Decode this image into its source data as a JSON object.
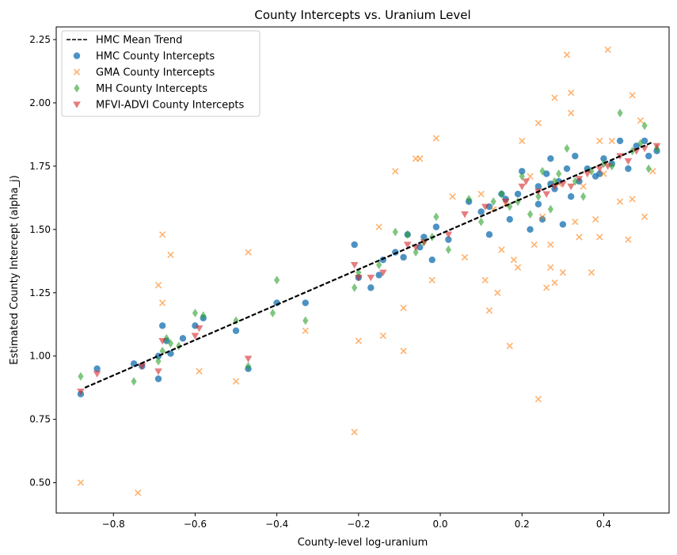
{
  "chart_data": {
    "type": "scatter",
    "title": "County Intercepts vs. Uranium Level",
    "xlabel": "County-level log-uranium",
    "ylabel": "Estimated County Intercept (alpha_j)",
    "xlim": [
      -0.94,
      0.56
    ],
    "ylim": [
      0.38,
      2.3
    ],
    "xticks": [
      -0.8,
      -0.6,
      -0.4,
      -0.2,
      0.0,
      0.2,
      0.4
    ],
    "xtick_labels": [
      "−0.8",
      "−0.6",
      "−0.4",
      "−0.2",
      "0.0",
      "0.2",
      "0.4"
    ],
    "yticks": [
      0.5,
      0.75,
      1.0,
      1.25,
      1.5,
      1.75,
      2.0,
      2.25
    ],
    "ytick_labels": [
      "0.50",
      "0.75",
      "1.00",
      "1.25",
      "1.50",
      "1.75",
      "2.00",
      "2.25"
    ],
    "grid": false,
    "legend_position": "top-left",
    "trend": {
      "name": "HMC Mean Trend",
      "x": [
        -0.87,
        0.52
      ],
      "y": [
        0.875,
        1.845
      ],
      "color": "#000000"
    },
    "series": [
      {
        "name": "HMC County Intercepts",
        "marker": "circle",
        "color": "#1f77b4",
        "points": [
          [
            -0.88,
            0.85
          ],
          [
            -0.84,
            0.95
          ],
          [
            -0.75,
            0.97
          ],
          [
            -0.73,
            0.96
          ],
          [
            -0.69,
            0.91
          ],
          [
            -0.69,
            1.0
          ],
          [
            -0.68,
            1.12
          ],
          [
            -0.67,
            1.06
          ],
          [
            -0.66,
            1.01
          ],
          [
            -0.63,
            1.07
          ],
          [
            -0.6,
            1.12
          ],
          [
            -0.58,
            1.15
          ],
          [
            -0.5,
            1.1
          ],
          [
            -0.47,
            0.95
          ],
          [
            -0.4,
            1.21
          ],
          [
            -0.33,
            1.21
          ],
          [
            -0.21,
            1.44
          ],
          [
            -0.2,
            1.31
          ],
          [
            -0.17,
            1.27
          ],
          [
            -0.15,
            1.32
          ],
          [
            -0.14,
            1.38
          ],
          [
            -0.11,
            1.41
          ],
          [
            -0.09,
            1.39
          ],
          [
            -0.08,
            1.48
          ],
          [
            -0.05,
            1.43
          ],
          [
            -0.04,
            1.47
          ],
          [
            -0.02,
            1.38
          ],
          [
            -0.01,
            1.51
          ],
          [
            0.02,
            1.46
          ],
          [
            0.07,
            1.61
          ],
          [
            0.1,
            1.57
          ],
          [
            0.12,
            1.59
          ],
          [
            0.12,
            1.48
          ],
          [
            0.15,
            1.64
          ],
          [
            0.16,
            1.62
          ],
          [
            0.17,
            1.54
          ],
          [
            0.19,
            1.64
          ],
          [
            0.2,
            1.73
          ],
          [
            0.22,
            1.5
          ],
          [
            0.24,
            1.6
          ],
          [
            0.24,
            1.67
          ],
          [
            0.25,
            1.54
          ],
          [
            0.26,
            1.72
          ],
          [
            0.27,
            1.68
          ],
          [
            0.27,
            1.78
          ],
          [
            0.28,
            1.66
          ],
          [
            0.29,
            1.69
          ],
          [
            0.3,
            1.52
          ],
          [
            0.31,
            1.74
          ],
          [
            0.32,
            1.63
          ],
          [
            0.33,
            1.79
          ],
          [
            0.34,
            1.69
          ],
          [
            0.36,
            1.74
          ],
          [
            0.38,
            1.71
          ],
          [
            0.39,
            1.72
          ],
          [
            0.4,
            1.78
          ],
          [
            0.42,
            1.76
          ],
          [
            0.44,
            1.85
          ],
          [
            0.46,
            1.74
          ],
          [
            0.48,
            1.83
          ],
          [
            0.5,
            1.85
          ],
          [
            0.51,
            1.79
          ],
          [
            0.53,
            1.81
          ]
        ]
      },
      {
        "name": "GMA County Intercepts",
        "marker": "x",
        "color": "#ff7f0e",
        "points": [
          [
            -0.88,
            0.5
          ],
          [
            -0.74,
            0.46
          ],
          [
            -0.69,
            1.28
          ],
          [
            -0.68,
            1.48
          ],
          [
            -0.68,
            1.21
          ],
          [
            -0.66,
            1.4
          ],
          [
            -0.59,
            0.94
          ],
          [
            -0.5,
            0.9
          ],
          [
            -0.47,
            1.41
          ],
          [
            -0.33,
            1.1
          ],
          [
            -0.21,
            0.7
          ],
          [
            -0.2,
            1.06
          ],
          [
            -0.14,
            1.08
          ],
          [
            -0.15,
            1.51
          ],
          [
            -0.11,
            1.73
          ],
          [
            -0.09,
            1.19
          ],
          [
            -0.09,
            1.02
          ],
          [
            -0.06,
            1.78
          ],
          [
            -0.05,
            1.78
          ],
          [
            -0.02,
            1.3
          ],
          [
            -0.01,
            1.86
          ],
          [
            0.03,
            1.63
          ],
          [
            0.06,
            1.39
          ],
          [
            0.1,
            1.64
          ],
          [
            0.11,
            1.3
          ],
          [
            0.12,
            1.18
          ],
          [
            0.13,
            1.58
          ],
          [
            0.14,
            1.25
          ],
          [
            0.15,
            1.42
          ],
          [
            0.16,
            1.6
          ],
          [
            0.17,
            1.04
          ],
          [
            0.18,
            1.38
          ],
          [
            0.19,
            1.35
          ],
          [
            0.2,
            1.85
          ],
          [
            0.22,
            1.71
          ],
          [
            0.23,
            1.44
          ],
          [
            0.24,
            1.92
          ],
          [
            0.24,
            0.83
          ],
          [
            0.25,
            1.55
          ],
          [
            0.26,
            1.27
          ],
          [
            0.27,
            1.35
          ],
          [
            0.27,
            1.44
          ],
          [
            0.28,
            1.29
          ],
          [
            0.28,
            2.02
          ],
          [
            0.29,
            1.68
          ],
          [
            0.3,
            1.33
          ],
          [
            0.31,
            2.19
          ],
          [
            0.32,
            2.04
          ],
          [
            0.32,
            1.96
          ],
          [
            0.33,
            1.53
          ],
          [
            0.34,
            1.47
          ],
          [
            0.35,
            1.67
          ],
          [
            0.37,
            1.33
          ],
          [
            0.38,
            1.54
          ],
          [
            0.39,
            1.85
          ],
          [
            0.39,
            1.47
          ],
          [
            0.4,
            1.72
          ],
          [
            0.41,
            2.21
          ],
          [
            0.42,
            1.85
          ],
          [
            0.44,
            1.61
          ],
          [
            0.46,
            1.46
          ],
          [
            0.47,
            1.62
          ],
          [
            0.47,
            2.03
          ],
          [
            0.49,
            1.93
          ],
          [
            0.5,
            1.55
          ],
          [
            0.52,
            1.73
          ]
        ]
      },
      {
        "name": "MH County Intercepts",
        "marker": "diamond",
        "color": "#2ca02c",
        "points": [
          [
            -0.88,
            0.92
          ],
          [
            -0.75,
            0.9
          ],
          [
            -0.69,
            0.98
          ],
          [
            -0.68,
            1.02
          ],
          [
            -0.67,
            1.07
          ],
          [
            -0.66,
            1.05
          ],
          [
            -0.64,
            1.04
          ],
          [
            -0.6,
            1.17
          ],
          [
            -0.58,
            1.16
          ],
          [
            -0.5,
            1.14
          ],
          [
            -0.47,
            0.96
          ],
          [
            -0.41,
            1.17
          ],
          [
            -0.4,
            1.3
          ],
          [
            -0.33,
            1.14
          ],
          [
            -0.21,
            1.27
          ],
          [
            -0.2,
            1.33
          ],
          [
            -0.15,
            1.36
          ],
          [
            -0.11,
            1.49
          ],
          [
            -0.08,
            1.48
          ],
          [
            -0.06,
            1.41
          ],
          [
            -0.04,
            1.45
          ],
          [
            -0.02,
            1.47
          ],
          [
            -0.01,
            1.55
          ],
          [
            0.02,
            1.42
          ],
          [
            0.07,
            1.62
          ],
          [
            0.1,
            1.53
          ],
          [
            0.13,
            1.61
          ],
          [
            0.15,
            1.64
          ],
          [
            0.17,
            1.59
          ],
          [
            0.19,
            1.61
          ],
          [
            0.2,
            1.71
          ],
          [
            0.22,
            1.56
          ],
          [
            0.24,
            1.63
          ],
          [
            0.25,
            1.73
          ],
          [
            0.27,
            1.58
          ],
          [
            0.28,
            1.69
          ],
          [
            0.29,
            1.72
          ],
          [
            0.31,
            1.82
          ],
          [
            0.33,
            1.69
          ],
          [
            0.35,
            1.63
          ],
          [
            0.37,
            1.73
          ],
          [
            0.4,
            1.76
          ],
          [
            0.42,
            1.75
          ],
          [
            0.44,
            1.96
          ],
          [
            0.47,
            1.81
          ],
          [
            0.49,
            1.84
          ],
          [
            0.5,
            1.91
          ],
          [
            0.51,
            1.74
          ],
          [
            0.53,
            1.82
          ]
        ]
      },
      {
        "name": "MFVI-ADVI County Intercepts",
        "marker": "triangle-down",
        "color": "#d62728",
        "points": [
          [
            -0.88,
            0.86
          ],
          [
            -0.84,
            0.93
          ],
          [
            -0.73,
            0.96
          ],
          [
            -0.69,
            0.94
          ],
          [
            -0.68,
            1.06
          ],
          [
            -0.59,
            1.11
          ],
          [
            -0.6,
            1.08
          ],
          [
            -0.47,
            0.99
          ],
          [
            -0.21,
            1.36
          ],
          [
            -0.2,
            1.31
          ],
          [
            -0.17,
            1.31
          ],
          [
            -0.14,
            1.33
          ],
          [
            -0.08,
            1.44
          ],
          [
            -0.06,
            1.43
          ],
          [
            -0.04,
            1.45
          ],
          [
            0.02,
            1.48
          ],
          [
            0.06,
            1.56
          ],
          [
            0.11,
            1.59
          ],
          [
            0.16,
            1.61
          ],
          [
            0.2,
            1.67
          ],
          [
            0.21,
            1.69
          ],
          [
            0.24,
            1.65
          ],
          [
            0.26,
            1.64
          ],
          [
            0.28,
            1.67
          ],
          [
            0.3,
            1.68
          ],
          [
            0.32,
            1.67
          ],
          [
            0.34,
            1.7
          ],
          [
            0.36,
            1.72
          ],
          [
            0.39,
            1.74
          ],
          [
            0.41,
            1.75
          ],
          [
            0.44,
            1.79
          ],
          [
            0.46,
            1.77
          ],
          [
            0.48,
            1.81
          ],
          [
            0.5,
            1.82
          ],
          [
            0.53,
            1.83
          ]
        ]
      }
    ]
  }
}
